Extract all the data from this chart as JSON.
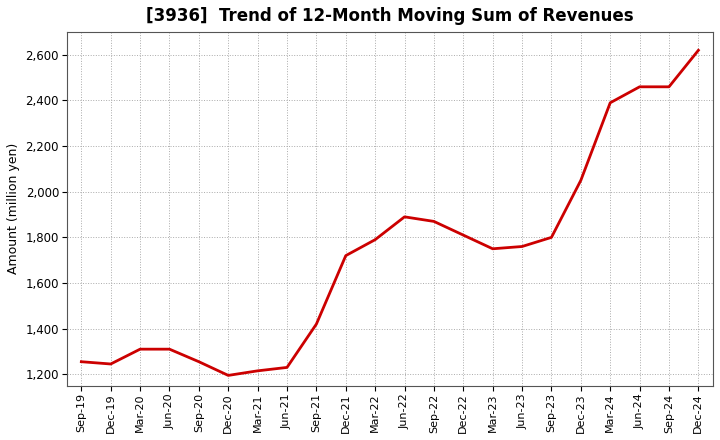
{
  "title": "[3936]  Trend of 12-Month Moving Sum of Revenues",
  "ylabel": "Amount (million yen)",
  "line_color": "#cc0000",
  "background_color": "#ffffff",
  "plot_bg_color": "#ffffff",
  "grid_color": "#aaaaaa",
  "ylim": [
    1150,
    2700
  ],
  "yticks": [
    1200,
    1400,
    1600,
    1800,
    2000,
    2200,
    2400,
    2600
  ],
  "x_labels": [
    "Sep-19",
    "Dec-19",
    "Mar-20",
    "Jun-20",
    "Sep-20",
    "Dec-20",
    "Mar-21",
    "Jun-21",
    "Sep-21",
    "Dec-21",
    "Mar-22",
    "Jun-22",
    "Sep-22",
    "Dec-22",
    "Mar-23",
    "Jun-23",
    "Sep-23",
    "Dec-23",
    "Mar-24",
    "Jun-24",
    "Sep-24",
    "Dec-24"
  ],
  "values": [
    1255,
    1245,
    1310,
    1310,
    1255,
    1195,
    1215,
    1230,
    1420,
    1720,
    1790,
    1890,
    1870,
    1810,
    1750,
    1760,
    1800,
    2050,
    2390,
    2460,
    2460,
    2620
  ]
}
